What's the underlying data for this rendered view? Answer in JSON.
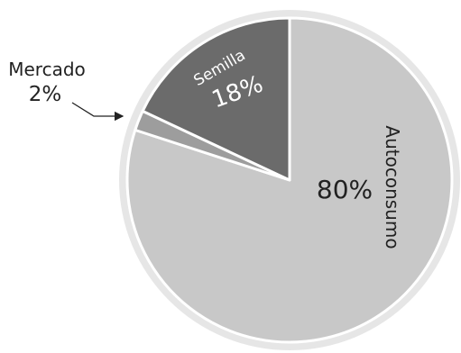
{
  "chart_data": {
    "type": "pie",
    "slices": [
      {
        "name": "Autoconsumo",
        "value": 80,
        "value_label": "80%",
        "color": "#c8c8c8"
      },
      {
        "name": "Mercado",
        "value": 2,
        "value_label": "2%",
        "color": "#9d9d9d"
      },
      {
        "name": "Semilla",
        "value": 18,
        "value_label": "18%",
        "color": "#6b6b6b"
      }
    ],
    "ring_color": "#e6e6e6",
    "separator_color": "#ffffff",
    "legend": "none",
    "title": ""
  }
}
